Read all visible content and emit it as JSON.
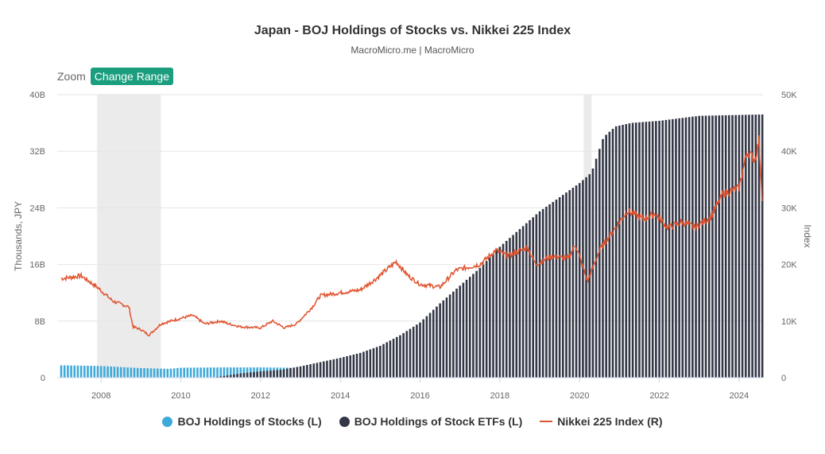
{
  "title": "Japan - BOJ Holdings of Stocks vs. Nikkei 225 Index",
  "subtitle": "MacroMicro.me | MacroMicro",
  "zoom_label": "Zoom",
  "change_range_label": "Change Range",
  "colors": {
    "stocks": "#3eaad9",
    "etfs": "#333746",
    "nikkei": "#e0532f",
    "recession": "#ebebeb",
    "grid": "#e6e6e6"
  },
  "chart_data": {
    "type": "bar+line",
    "title": "Japan - BOJ Holdings of Stocks vs. Nikkei 225 Index",
    "left_axis": {
      "label": "Thousands, JPY",
      "range": [
        0,
        40000000000
      ],
      "ticks": [
        0,
        8000000000,
        16000000000,
        24000000000,
        32000000000,
        40000000000
      ],
      "tick_labels": [
        "0",
        "8B",
        "16B",
        "24B",
        "32B",
        "40B"
      ]
    },
    "right_axis": {
      "label": "Index",
      "range": [
        0,
        50000
      ],
      "ticks": [
        0,
        10000,
        20000,
        30000,
        40000,
        50000
      ],
      "tick_labels": [
        "0",
        "10K",
        "20K",
        "30K",
        "40K",
        "50K"
      ]
    },
    "x_axis": {
      "range": [
        2006.9,
        2024.6
      ],
      "ticks": [
        2008,
        2010,
        2012,
        2014,
        2016,
        2018,
        2020,
        2022,
        2024
      ],
      "tick_labels": [
        "2008",
        "2010",
        "2012",
        "2014",
        "2016",
        "2018",
        "2020",
        "2022",
        "2024"
      ]
    },
    "shaded_periods": [
      [
        2007.9,
        2009.5
      ],
      [
        2020.1,
        2020.3
      ]
    ],
    "series": [
      {
        "name": "BOJ Holdings of Stocks (L)",
        "type": "bar",
        "axis": "left",
        "points": [
          [
            2007.0,
            1750000000.0
          ],
          [
            2008.0,
            1650000000.0
          ],
          [
            2009.0,
            1350000000.0
          ],
          [
            2009.7,
            1250000000.0
          ],
          [
            2010.0,
            1400000000.0
          ],
          [
            2011.0,
            1450000000.0
          ],
          [
            2012.0,
            1450000000.0
          ],
          [
            2012.8,
            1400000000.0
          ]
        ]
      },
      {
        "name": "BOJ Holdings of Stock ETFs (L)",
        "type": "bar",
        "axis": "left",
        "points": [
          [
            2010.9,
            100000000.0
          ],
          [
            2011.5,
            600000000.0
          ],
          [
            2012.0,
            900000000.0
          ],
          [
            2012.5,
            1100000000.0
          ],
          [
            2013.0,
            1600000000.0
          ],
          [
            2013.5,
            2200000000.0
          ],
          [
            2014.0,
            2800000000.0
          ],
          [
            2014.5,
            3500000000.0
          ],
          [
            2015.0,
            4500000000.0
          ],
          [
            2015.5,
            6000000000.0
          ],
          [
            2016.0,
            7800000000.0
          ],
          [
            2016.5,
            10500000000.0
          ],
          [
            2017.0,
            13000000000.0
          ],
          [
            2017.5,
            15500000000.0
          ],
          [
            2018.0,
            18500000000.0
          ],
          [
            2018.5,
            21000000000.0
          ],
          [
            2019.0,
            23500000000.0
          ],
          [
            2019.5,
            25500000000.0
          ],
          [
            2020.0,
            27500000000.0
          ],
          [
            2020.3,
            29000000000.0
          ],
          [
            2020.6,
            34000000000.0
          ],
          [
            2020.9,
            35500000000.0
          ],
          [
            2021.3,
            36000000000.0
          ],
          [
            2022.0,
            36300000000.0
          ],
          [
            2023.0,
            37000000000.0
          ],
          [
            2024.6,
            37200000000.0
          ]
        ]
      },
      {
        "name": "Nikkei 225 Index (R)",
        "type": "line",
        "axis": "right",
        "points": [
          [
            2007.0,
            17500
          ],
          [
            2007.5,
            18000
          ],
          [
            2007.9,
            16000
          ],
          [
            2008.3,
            13500
          ],
          [
            2008.7,
            12500
          ],
          [
            2008.8,
            9000
          ],
          [
            2009.0,
            8500
          ],
          [
            2009.2,
            7500
          ],
          [
            2009.5,
            9500
          ],
          [
            2010.0,
            10500
          ],
          [
            2010.3,
            11000
          ],
          [
            2010.6,
            9500
          ],
          [
            2011.0,
            10000
          ],
          [
            2011.2,
            9500
          ],
          [
            2011.5,
            9000
          ],
          [
            2012.0,
            8800
          ],
          [
            2012.3,
            10000
          ],
          [
            2012.6,
            8800
          ],
          [
            2012.9,
            9500
          ],
          [
            2013.3,
            12500
          ],
          [
            2013.5,
            14500
          ],
          [
            2014.0,
            15000
          ],
          [
            2014.5,
            15500
          ],
          [
            2014.9,
            17500
          ],
          [
            2015.4,
            20500
          ],
          [
            2015.7,
            18000
          ],
          [
            2016.0,
            16500
          ],
          [
            2016.5,
            16000
          ],
          [
            2016.9,
            19000
          ],
          [
            2017.5,
            20000
          ],
          [
            2017.9,
            22500
          ],
          [
            2018.2,
            21500
          ],
          [
            2018.7,
            23000
          ],
          [
            2018.9,
            20000
          ],
          [
            2019.3,
            21500
          ],
          [
            2019.7,
            21000
          ],
          [
            2019.9,
            23500
          ],
          [
            2020.2,
            17000
          ],
          [
            2020.5,
            22500
          ],
          [
            2020.9,
            26500
          ],
          [
            2021.2,
            29500
          ],
          [
            2021.6,
            28000
          ],
          [
            2021.9,
            29000
          ],
          [
            2022.2,
            26500
          ],
          [
            2022.6,
            27500
          ],
          [
            2022.9,
            26500
          ],
          [
            2023.3,
            28500
          ],
          [
            2023.6,
            32500
          ],
          [
            2024.0,
            33500
          ],
          [
            2024.2,
            40000
          ],
          [
            2024.4,
            38500
          ],
          [
            2024.5,
            42000
          ],
          [
            2024.58,
            31500
          ]
        ]
      }
    ],
    "legend": [
      "BOJ Holdings of Stocks (L)",
      "BOJ Holdings of Stock ETFs (L)",
      "Nikkei 225 Index (R)"
    ],
    "legend_position": "bottom-center"
  }
}
